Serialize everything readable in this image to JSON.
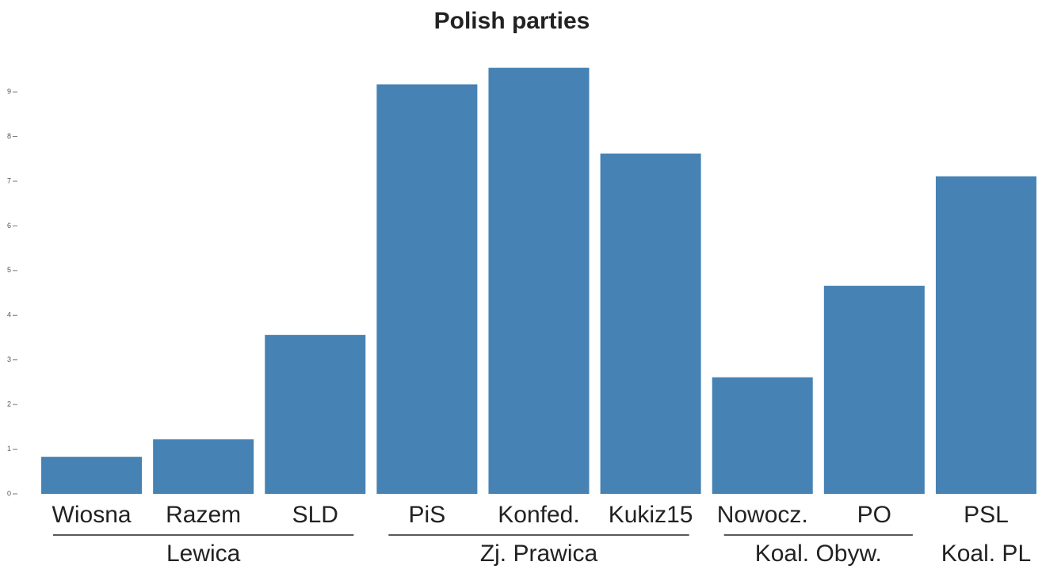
{
  "chart_data": {
    "type": "bar",
    "title": "Polish parties",
    "color": "#4682b4",
    "ylim": [
      0,
      9.8
    ],
    "yticks": [
      0,
      1,
      2,
      3,
      4,
      5,
      6,
      7,
      8,
      9
    ],
    "groups": [
      {
        "name": "Lewica",
        "categories": [
          "Wiosna",
          "Razem",
          "SLD"
        ],
        "values": [
          0.83,
          1.22,
          3.56
        ]
      },
      {
        "name": "Zj. Prawica",
        "categories": [
          "PiS",
          "Konfed.",
          "Kukiz15"
        ],
        "values": [
          9.17,
          9.54,
          7.62
        ]
      },
      {
        "name": "Koal. Obyw.",
        "categories": [
          "Nowocz.",
          "PO"
        ],
        "values": [
          2.61,
          4.66
        ]
      },
      {
        "name": "Koal. PL",
        "categories": [
          "PSL"
        ],
        "values": [
          7.11
        ]
      }
    ]
  }
}
